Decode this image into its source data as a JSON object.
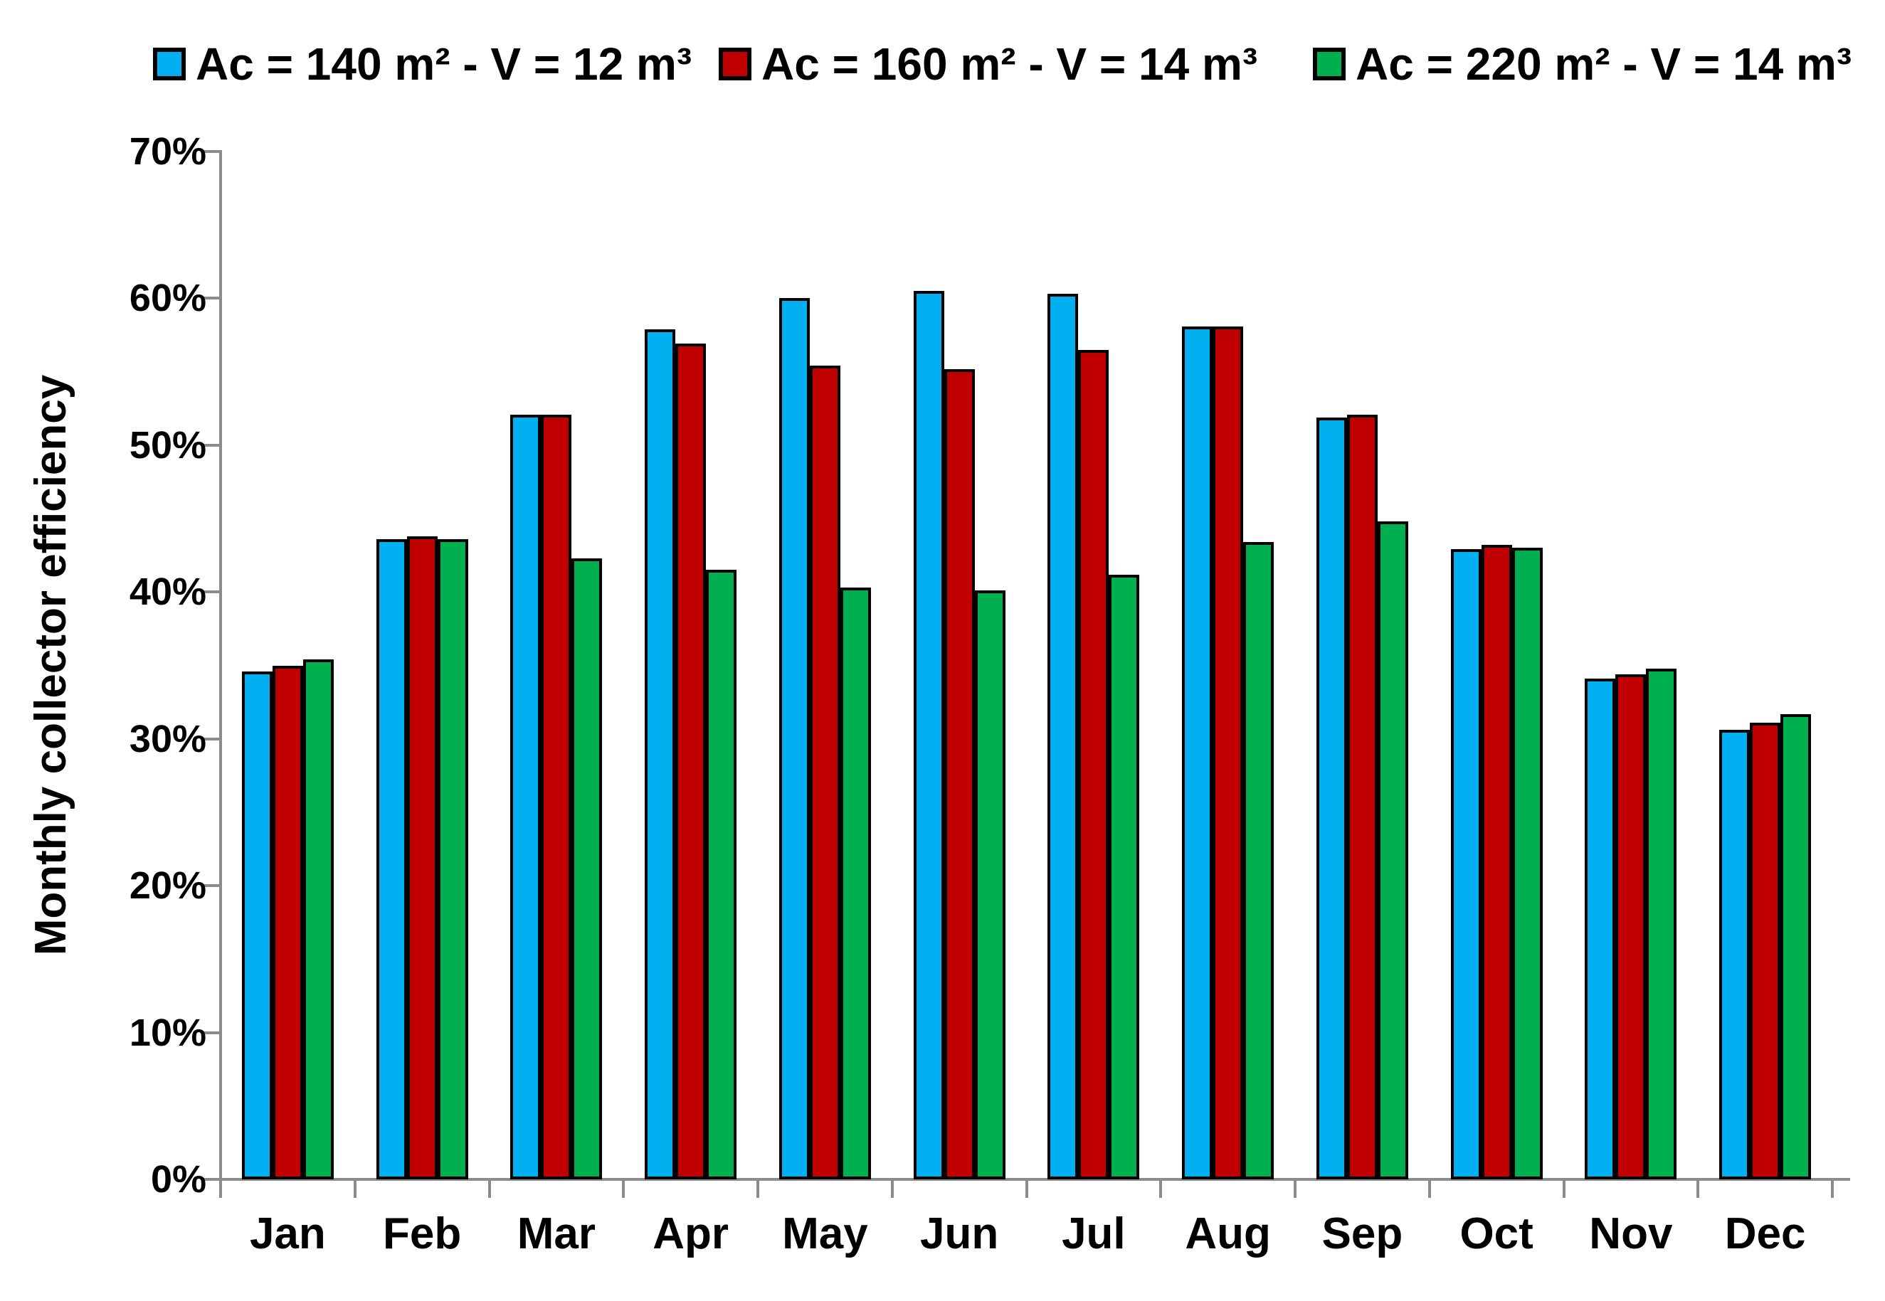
{
  "chart_data": {
    "type": "bar",
    "title": "",
    "xlabel": "",
    "ylabel": "Monthly collector efficiency",
    "ylim": [
      0,
      70
    ],
    "y_tick_step": 10,
    "y_tick_format": "percent",
    "grid": false,
    "legend_position": "top",
    "categories": [
      "Jan",
      "Feb",
      "Mar",
      "Apr",
      "May",
      "Jun",
      "Jul",
      "Aug",
      "Sep",
      "Oct",
      "Nov",
      "Dec"
    ],
    "series": [
      {
        "name": "Ac = 140 m² - V = 12 m³",
        "color": "#00B0F0",
        "values": [
          34.6,
          43.6,
          52.1,
          57.9,
          60.0,
          60.5,
          60.3,
          58.1,
          51.9,
          42.9,
          34.1,
          30.6
        ]
      },
      {
        "name": "Ac = 160 m² - V = 14 m³",
        "color": "#C00000",
        "values": [
          35.0,
          43.8,
          52.1,
          56.9,
          55.4,
          55.2,
          56.5,
          58.1,
          52.1,
          43.2,
          34.4,
          31.1
        ]
      },
      {
        "name": "Ac = 220 m² - V = 14 m³",
        "color": "#00B050",
        "values": [
          35.4,
          43.6,
          42.3,
          41.5,
          40.3,
          40.1,
          41.2,
          43.4,
          44.8,
          43.0,
          34.8,
          31.7
        ]
      }
    ],
    "y_tick_labels": [
      "0%",
      "10%",
      "20%",
      "30%",
      "40%",
      "50%",
      "60%",
      "70%"
    ]
  },
  "colors": {
    "axis": "#8C8C8C",
    "bar_border": "#000000",
    "text": "#000000",
    "background": "#FFFFFF"
  }
}
